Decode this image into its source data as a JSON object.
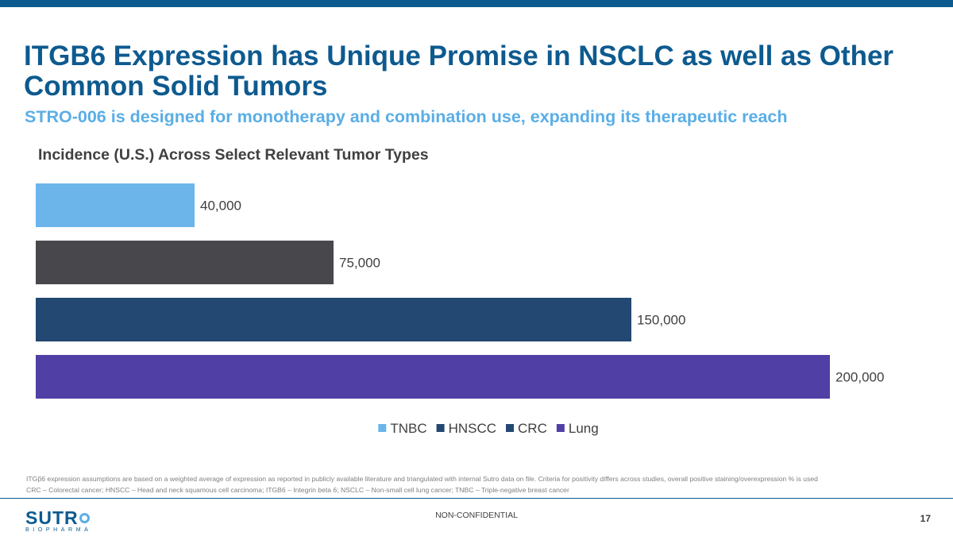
{
  "slide": {
    "title": "ITGB6 Expression has Unique Promise in NSCLC as well as Other Common Solid Tumors",
    "subtitle": "STRO-006 is designed for monotherapy and combination use, expanding its therapeutic reach",
    "footnotes": [
      "ITGβ6 expression assumptions are based on a weighted average of expression as reported in publicly available literature and triangulated with internal Sutro data on file. Criteria for positivity differs across studies, overall positive staining/overexpression % is used",
      "CRC – Colorectal cancer; HNSCC – Head and neck squamous cell carcinoma; ITGB6 – Integrin beta 6; NSCLC – Non-small cell lung cancer; TNBC – Triple-negative breast cancer"
    ],
    "footer": {
      "logo_word": "SUTR",
      "logo_sub": "BIOPHARMA",
      "confidential": "NON-CONFIDENTIAL",
      "page_number": "17"
    }
  },
  "colors": {
    "brand": "#0d5a8f",
    "accent": "#5aaee6"
  },
  "chart_data": {
    "type": "bar",
    "orientation": "horizontal",
    "title": "Incidence (U.S.) Across Select Relevant Tumor Types",
    "categories": [
      "TNBC",
      "HNSCC",
      "CRC",
      "Lung"
    ],
    "values": [
      40000,
      75000,
      150000,
      200000
    ],
    "value_labels": [
      "40,000",
      "75,000",
      "150,000",
      "200,000"
    ],
    "bar_colors": [
      "#6bb5ea",
      "#48484c",
      "#234872",
      "#5040a6"
    ],
    "legend": {
      "position": "bottom",
      "labels": [
        "TNBC",
        "HNSCC",
        "CRC",
        "Lung"
      ],
      "colors": [
        "#6bb5ea",
        "#234872",
        "#234872",
        "#5040a6"
      ]
    },
    "xlim": [
      0,
      200000
    ],
    "xlabel": "",
    "ylabel": "",
    "grid": false
  }
}
